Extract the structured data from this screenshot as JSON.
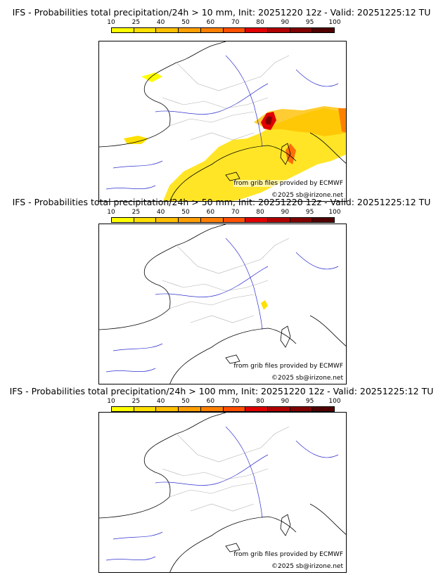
{
  "colorbar": {
    "labels": [
      "10",
      "25",
      "40",
      "50",
      "60",
      "70",
      "80",
      "90",
      "95",
      "100"
    ],
    "colors": [
      "#ffff00",
      "#ffe000",
      "#ffc000",
      "#ffa000",
      "#ff8000",
      "#ff5000",
      "#e00000",
      "#b00000",
      "#800000",
      "#500000"
    ]
  },
  "panels": [
    {
      "title": "IFS - Probabilities total precipitation/24h > 10 mm, Init: 20251220 12z - Valid: 20251225:12 TU",
      "credit1": "from grib files provided by ECMWF",
      "credit2": "©2025 sb@irizone.net"
    },
    {
      "title": "IFS - Probabilities total precipitation/24h > 50 mm, Init: 20251220 12z - Valid: 20251225:12 TU",
      "credit1": "from grib files provided by ECMWF",
      "credit2": "©2025 sb@irizone.net"
    },
    {
      "title": "IFS - Probabilities total precipitation/24h > 100 mm, Init: 20251220 12z - Valid: 20251225:12 TU",
      "credit1": "from grib files provided by ECMWF",
      "credit2": "©2025 sb@irizone.net"
    }
  ]
}
